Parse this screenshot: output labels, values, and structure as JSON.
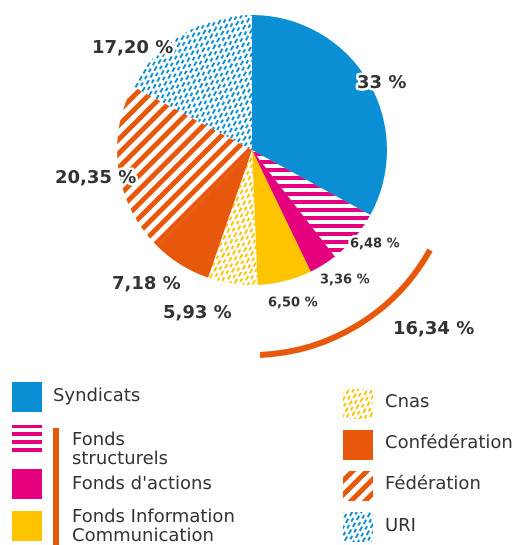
{
  "chart_data": {
    "type": "pie",
    "categories": [
      "Syndicats",
      "Fonds structurels",
      "Fonds d'actions",
      "Fonds Information Communication",
      "Cnas",
      "Confédération",
      "Fédération",
      "URI"
    ],
    "values": [
      33,
      6.48,
      3.36,
      6.5,
      5.93,
      7.18,
      20.35,
      17.2
    ],
    "value_labels": [
      "33 %",
      "6,48 %",
      "3,36 %",
      "6,50 %",
      "5,93 %",
      "7,18 %",
      "20,35 %",
      "17,20 %"
    ],
    "colors": [
      "#0a8fd4",
      "#e5007e",
      "#e5007e",
      "#ffc400",
      "#ffc400",
      "#e8580c",
      "#e8580c",
      "#0a8fd4"
    ],
    "patterns": [
      "solid",
      "horizontal-stripes",
      "solid",
      "solid",
      "dashes",
      "solid",
      "diagonal-stripes",
      "dashes"
    ],
    "annotation": "16,34 %"
  }
}
